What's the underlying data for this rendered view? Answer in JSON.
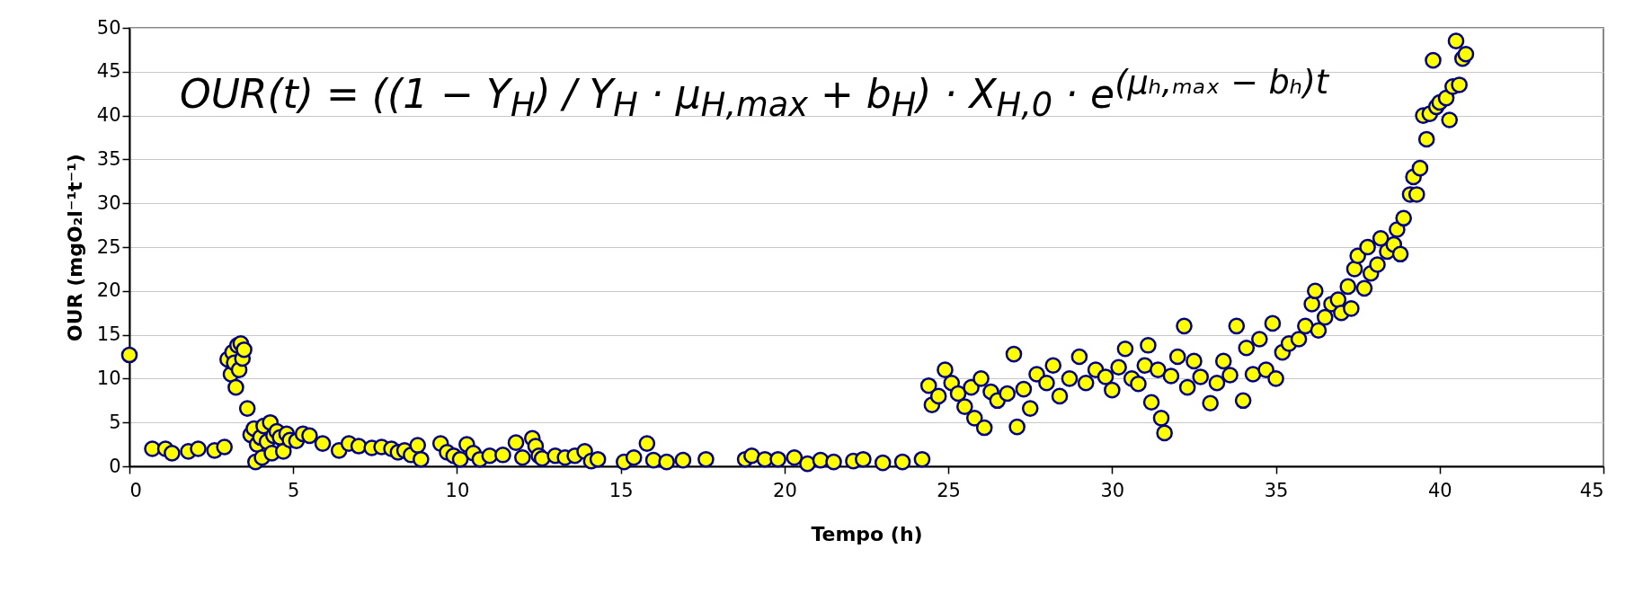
{
  "chart_data": {
    "type": "scatter",
    "xlabel": "Tempo (h)",
    "ylabel": "OUR (mgO₂l⁻¹t⁻¹)",
    "annotations": [
      "OUR(t) = ((1 − Y$_{H}$) / Y$_{H}$ · μ$_{H,max}$ + b$_{H}$) · X$_{H,0}$ · e$^{(μₕ,ₘₐₓ − bₕ)t}$"
    ],
    "xlim": [
      0,
      45
    ],
    "xticks": [
      0,
      5,
      10,
      15,
      20,
      25,
      30,
      35,
      40,
      45
    ],
    "ylim": [
      0,
      50
    ],
    "yticks": [
      0,
      5,
      10,
      15,
      20,
      25,
      30,
      35,
      40,
      45,
      50
    ],
    "grid": "y",
    "marker": "circle",
    "series": [
      {
        "color": "#ffff00",
        "x": [
          0,
          0.7,
          1.1,
          1.3,
          1.8,
          2.1,
          2.6,
          2.9,
          3.0,
          3.1,
          3.15,
          3.2,
          3.25,
          3.3,
          3.35,
          3.4,
          3.45,
          3.5,
          3.6,
          3.7,
          3.8,
          3.85,
          3.9,
          4.0,
          4.05,
          4.1,
          4.2,
          4.3,
          4.35,
          4.4,
          4.5,
          4.6,
          4.7,
          4.8,
          4.9,
          5.1,
          5.3,
          5.5,
          5.9,
          6.4,
          6.7,
          7.0,
          7.4,
          7.7,
          8.0,
          8.2,
          8.4,
          8.6,
          8.8,
          8.9,
          9.5,
          9.7,
          9.9,
          10.1,
          10.3,
          10.5,
          10.7,
          11.0,
          11.4,
          11.8,
          12.0,
          12.3,
          12.4,
          12.5,
          12.6,
          13.0,
          13.3,
          13.6,
          13.9,
          14.1,
          14.3,
          15.1,
          15.4,
          15.8,
          16.0,
          16.4,
          16.9,
          17.6,
          18.8,
          19.0,
          19.4,
          19.8,
          20.3,
          20.7,
          21.1,
          21.5,
          22.1,
          22.4,
          23.0,
          23.6,
          24.2,
          24.4,
          24.5,
          24.7,
          24.9,
          25.1,
          25.3,
          25.5,
          25.7,
          25.8,
          26.0,
          26.1,
          26.3,
          26.5,
          26.8,
          27.0,
          27.1,
          27.3,
          27.5,
          27.7,
          28.0,
          28.2,
          28.4,
          28.7,
          29.0,
          29.2,
          29.5,
          29.8,
          30.0,
          30.2,
          30.4,
          30.6,
          30.8,
          31.0,
          31.1,
          31.2,
          31.4,
          31.5,
          31.6,
          31.8,
          32.0,
          32.2,
          32.3,
          32.5,
          32.7,
          33.0,
          33.2,
          33.4,
          33.6,
          33.8,
          34.0,
          34.1,
          34.3,
          34.5,
          34.7,
          34.9,
          35.0,
          35.2,
          35.4,
          35.7,
          35.9,
          36.1,
          36.2,
          36.3,
          36.5,
          36.7,
          36.9,
          37.0,
          37.2,
          37.3,
          37.4,
          37.5,
          37.7,
          37.8,
          37.9,
          38.1,
          38.2,
          38.4,
          38.6,
          38.7,
          38.8,
          38.9,
          39.1,
          39.2,
          39.3,
          39.4,
          39.5,
          39.6,
          39.7,
          39.8,
          39.9,
          40.0,
          40.2,
          40.3,
          40.4,
          40.5,
          40.6,
          40.7,
          40.8
        ],
        "values": [
          12.7,
          2.0,
          2.0,
          1.5,
          1.7,
          2.0,
          1.8,
          2.2,
          12.2,
          10.5,
          13.0,
          11.8,
          9.0,
          13.8,
          11.0,
          14.0,
          12.3,
          13.3,
          6.6,
          3.6,
          4.3,
          0.5,
          2.5,
          3.3,
          1.0,
          4.6,
          2.8,
          5.0,
          1.5,
          3.5,
          4.0,
          3.3,
          1.7,
          3.7,
          3.0,
          2.9,
          3.7,
          3.5,
          2.6,
          1.8,
          2.6,
          2.3,
          2.1,
          2.2,
          2.0,
          1.6,
          1.8,
          1.3,
          2.4,
          0.8,
          2.6,
          1.6,
          1.2,
          0.8,
          2.5,
          1.5,
          0.8,
          1.2,
          1.3,
          2.7,
          1.0,
          3.2,
          2.3,
          1.2,
          0.9,
          1.2,
          1.0,
          1.2,
          1.7,
          0.6,
          0.8,
          0.5,
          1.0,
          2.6,
          0.7,
          0.5,
          0.7,
          0.8,
          0.8,
          1.2,
          0.8,
          0.8,
          1.0,
          0.3,
          0.7,
          0.5,
          0.6,
          0.8,
          0.4,
          0.5,
          0.8,
          9.2,
          7.0,
          8.0,
          11.0,
          9.5,
          8.3,
          6.8,
          9.0,
          5.5,
          10.0,
          4.4,
          8.5,
          7.5,
          8.3,
          12.8,
          4.5,
          8.8,
          6.6,
          10.5,
          9.5,
          11.5,
          8.0,
          10.0,
          12.5,
          9.5,
          11.0,
          10.2,
          8.7,
          11.3,
          13.4,
          10.0,
          9.4,
          11.5,
          13.8,
          7.3,
          11.0,
          5.5,
          3.8,
          10.3,
          12.5,
          16.0,
          9.0,
          12.0,
          10.2,
          7.2,
          9.5,
          12.0,
          10.4,
          16.0,
          7.5,
          13.5,
          10.5,
          14.5,
          11.0,
          16.3,
          10.0,
          13.0,
          14.0,
          14.5,
          16.0,
          18.5,
          20.0,
          15.5,
          17.0,
          18.5,
          19.0,
          17.5,
          20.5,
          18.0,
          22.5,
          24.0,
          20.3,
          25.0,
          22.0,
          23.0,
          26.0,
          24.5,
          25.3,
          27.0,
          24.2,
          28.3,
          31.0,
          33.0,
          31.0,
          34.0,
          40.0,
          37.3,
          40.2,
          46.3,
          41.0,
          41.5,
          42.0,
          39.5,
          43.3,
          48.5,
          43.5,
          46.5,
          47.0
        ]
      }
    ]
  }
}
